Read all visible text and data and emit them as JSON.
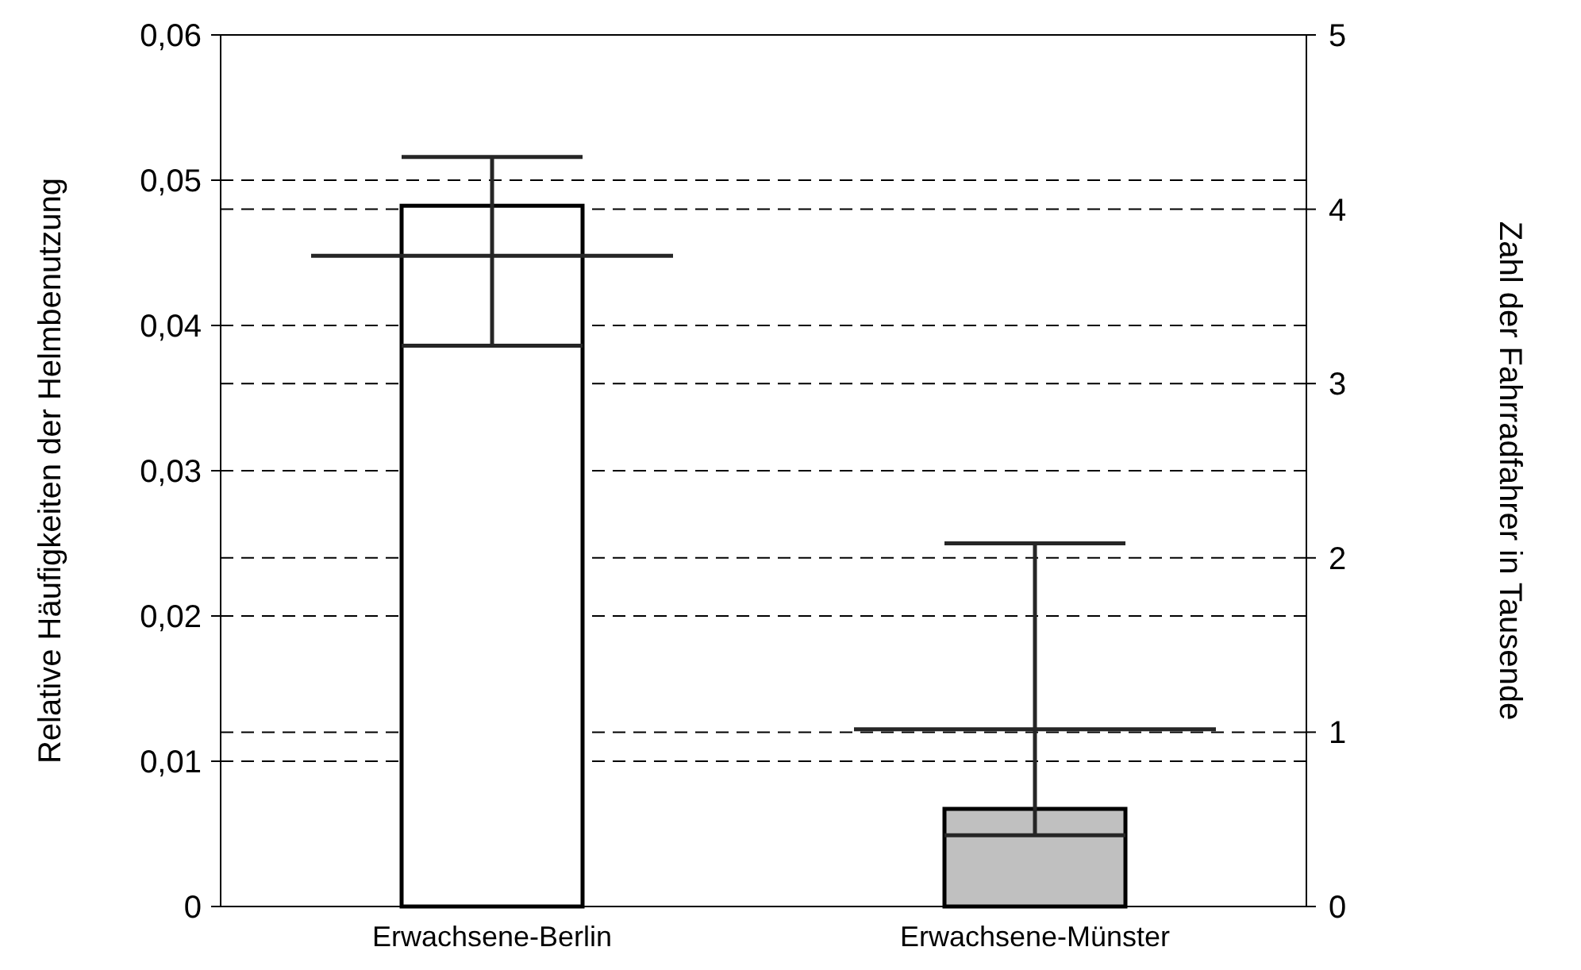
{
  "chart_data": {
    "type": "bar",
    "ylabel": "Relative Häufigkeiten der Helmbenutzung",
    "y2label": "Zahl der Fahrradfahrer in Tausende",
    "categories": [
      "Erwachsene-Berlin",
      "Erwachsene-Münster"
    ],
    "series": [
      {
        "axis": "y2",
        "colors": [
          "#ffffff",
          "#c0c0c0"
        ],
        "values": [
          4.02,
          0.56
        ]
      },
      {
        "type": "box",
        "axis": "y",
        "color": "#262626",
        "boxes": [
          {
            "low": 0.0386,
            "q1": 0.0448,
            "median": 0.0448,
            "q3": 0.0448,
            "high": 0.0516
          },
          {
            "low": 0.0049,
            "q1": 0.0122,
            "median": 0.0122,
            "q3": 0.0122,
            "high": 0.025
          }
        ]
      }
    ],
    "ylim": [
      0,
      0.06
    ],
    "yticks": [
      {
        "value": 0,
        "label": "0"
      },
      {
        "value": 0.01,
        "label": "0,01"
      },
      {
        "value": 0.02,
        "label": "0,02"
      },
      {
        "value": 0.03,
        "label": "0,03"
      },
      {
        "value": 0.04,
        "label": "0,04"
      },
      {
        "value": 0.05,
        "label": "0,05"
      },
      {
        "value": 0.06,
        "label": "0,06"
      }
    ],
    "y2lim": [
      0,
      5
    ],
    "y2ticks": [
      0,
      1,
      2,
      3,
      4,
      5
    ],
    "grid": true
  }
}
